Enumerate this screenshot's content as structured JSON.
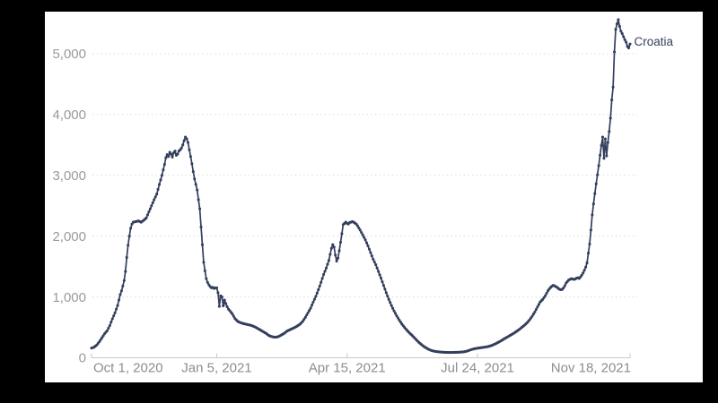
{
  "frame": {
    "background_color": "#000000",
    "canvas_color": "#ffffff"
  },
  "chart_data": {
    "type": "line",
    "description_visible_text_only": true,
    "series": [
      {
        "name": "Croatia",
        "end_label": "Croatia",
        "color": "#343f5d",
        "marker": "dot",
        "points_day_value": [
          [
            0,
            160
          ],
          [
            2,
            175
          ],
          [
            4,
            210
          ],
          [
            6,
            265
          ],
          [
            8,
            330
          ],
          [
            10,
            395
          ],
          [
            12,
            445
          ],
          [
            14,
            530
          ],
          [
            16,
            640
          ],
          [
            18,
            740
          ],
          [
            20,
            860
          ],
          [
            21,
            950
          ],
          [
            22,
            1040
          ],
          [
            23,
            1100
          ],
          [
            24,
            1180
          ],
          [
            25,
            1270
          ],
          [
            26,
            1420
          ],
          [
            27,
            1650
          ],
          [
            28,
            1850
          ],
          [
            29,
            2000
          ],
          [
            30,
            2130
          ],
          [
            31,
            2200
          ],
          [
            32,
            2230
          ],
          [
            34,
            2240
          ],
          [
            36,
            2250
          ],
          [
            38,
            2230
          ],
          [
            40,
            2260
          ],
          [
            42,
            2300
          ],
          [
            44,
            2400
          ],
          [
            45,
            2450
          ],
          [
            46,
            2500
          ],
          [
            48,
            2600
          ],
          [
            50,
            2690
          ],
          [
            52,
            2850
          ],
          [
            54,
            3000
          ],
          [
            56,
            3180
          ],
          [
            57,
            3290
          ],
          [
            58,
            3340
          ],
          [
            59,
            3310
          ],
          [
            60,
            3380
          ],
          [
            61,
            3350
          ],
          [
            62,
            3300
          ],
          [
            63,
            3370
          ],
          [
            64,
            3400
          ],
          [
            65,
            3330
          ],
          [
            66,
            3350
          ],
          [
            67,
            3400
          ],
          [
            68,
            3420
          ],
          [
            69,
            3450
          ],
          [
            70,
            3500
          ],
          [
            71,
            3570
          ],
          [
            72,
            3630
          ],
          [
            73,
            3600
          ],
          [
            74,
            3540
          ],
          [
            75,
            3420
          ],
          [
            76,
            3310
          ],
          [
            77,
            3190
          ],
          [
            78,
            3060
          ],
          [
            79,
            2940
          ],
          [
            80,
            2850
          ],
          [
            81,
            2760
          ],
          [
            82,
            2600
          ],
          [
            83,
            2450
          ],
          [
            84,
            2150
          ],
          [
            85,
            1860
          ],
          [
            86,
            1570
          ],
          [
            87,
            1430
          ],
          [
            88,
            1300
          ],
          [
            89,
            1240
          ],
          [
            90,
            1200
          ],
          [
            91,
            1170
          ],
          [
            92,
            1150
          ],
          [
            93,
            1160
          ],
          [
            94,
            1140
          ],
          [
            95,
            1150
          ],
          [
            96,
            1150
          ],
          [
            97,
            1070
          ],
          [
            98,
            845
          ],
          [
            99,
            1020
          ],
          [
            100,
            1000
          ],
          [
            101,
            855
          ],
          [
            102,
            950
          ],
          [
            103,
            890
          ],
          [
            104,
            840
          ],
          [
            105,
            800
          ],
          [
            106,
            775
          ],
          [
            108,
            720
          ],
          [
            110,
            645
          ],
          [
            112,
            600
          ],
          [
            114,
            580
          ],
          [
            116,
            565
          ],
          [
            118,
            555
          ],
          [
            120,
            545
          ],
          [
            122,
            535
          ],
          [
            124,
            520
          ],
          [
            126,
            500
          ],
          [
            128,
            475
          ],
          [
            130,
            450
          ],
          [
            132,
            425
          ],
          [
            134,
            400
          ],
          [
            136,
            365
          ],
          [
            138,
            350
          ],
          [
            140,
            340
          ],
          [
            142,
            340
          ],
          [
            144,
            355
          ],
          [
            146,
            380
          ],
          [
            148,
            405
          ],
          [
            150,
            440
          ],
          [
            152,
            460
          ],
          [
            154,
            480
          ],
          [
            156,
            500
          ],
          [
            158,
            525
          ],
          [
            160,
            555
          ],
          [
            162,
            600
          ],
          [
            164,
            665
          ],
          [
            166,
            740
          ],
          [
            168,
            815
          ],
          [
            170,
            915
          ],
          [
            172,
            1010
          ],
          [
            174,
            1120
          ],
          [
            176,
            1240
          ],
          [
            178,
            1370
          ],
          [
            180,
            1475
          ],
          [
            182,
            1600
          ],
          [
            183,
            1700
          ],
          [
            184,
            1800
          ],
          [
            185,
            1860
          ],
          [
            186,
            1820
          ],
          [
            187,
            1690
          ],
          [
            188,
            1590
          ],
          [
            189,
            1640
          ],
          [
            190,
            1760
          ],
          [
            191,
            1900
          ],
          [
            192,
            2040
          ],
          [
            193,
            2190
          ],
          [
            194,
            2210
          ],
          [
            195,
            2230
          ],
          [
            196,
            2210
          ],
          [
            197,
            2200
          ],
          [
            198,
            2225
          ],
          [
            199,
            2230
          ],
          [
            200,
            2240
          ],
          [
            201,
            2230
          ],
          [
            202,
            2215
          ],
          [
            203,
            2200
          ],
          [
            204,
            2170
          ],
          [
            206,
            2100
          ],
          [
            208,
            2020
          ],
          [
            210,
            1940
          ],
          [
            212,
            1840
          ],
          [
            214,
            1730
          ],
          [
            216,
            1620
          ],
          [
            218,
            1530
          ],
          [
            220,
            1420
          ],
          [
            222,
            1310
          ],
          [
            224,
            1190
          ],
          [
            226,
            1070
          ],
          [
            228,
            960
          ],
          [
            230,
            860
          ],
          [
            232,
            770
          ],
          [
            234,
            690
          ],
          [
            236,
            620
          ],
          [
            238,
            555
          ],
          [
            240,
            500
          ],
          [
            242,
            450
          ],
          [
            244,
            405
          ],
          [
            246,
            365
          ],
          [
            248,
            320
          ],
          [
            250,
            275
          ],
          [
            252,
            235
          ],
          [
            254,
            200
          ],
          [
            256,
            170
          ],
          [
            258,
            145
          ],
          [
            260,
            125
          ],
          [
            262,
            112
          ],
          [
            264,
            104
          ],
          [
            266,
            98
          ],
          [
            268,
            94
          ],
          [
            270,
            91
          ],
          [
            272,
            89
          ],
          [
            274,
            88
          ],
          [
            276,
            88
          ],
          [
            278,
            89
          ],
          [
            280,
            90
          ],
          [
            282,
            92
          ],
          [
            284,
            95
          ],
          [
            286,
            100
          ],
          [
            288,
            110
          ],
          [
            290,
            125
          ],
          [
            292,
            140
          ],
          [
            294,
            150
          ],
          [
            296,
            158
          ],
          [
            298,
            164
          ],
          [
            300,
            170
          ],
          [
            302,
            176
          ],
          [
            304,
            184
          ],
          [
            306,
            196
          ],
          [
            308,
            212
          ],
          [
            310,
            232
          ],
          [
            312,
            255
          ],
          [
            314,
            278
          ],
          [
            316,
            305
          ],
          [
            318,
            330
          ],
          [
            320,
            355
          ],
          [
            322,
            380
          ],
          [
            324,
            405
          ],
          [
            326,
            435
          ],
          [
            328,
            465
          ],
          [
            330,
            500
          ],
          [
            332,
            535
          ],
          [
            334,
            575
          ],
          [
            336,
            625
          ],
          [
            338,
            685
          ],
          [
            340,
            755
          ],
          [
            342,
            835
          ],
          [
            344,
            915
          ],
          [
            346,
            960
          ],
          [
            347,
            990
          ],
          [
            348,
            1020
          ],
          [
            349,
            1060
          ],
          [
            350,
            1100
          ],
          [
            351,
            1130
          ],
          [
            352,
            1155
          ],
          [
            353,
            1175
          ],
          [
            354,
            1190
          ],
          [
            355,
            1185
          ],
          [
            356,
            1170
          ],
          [
            357,
            1160
          ],
          [
            358,
            1140
          ],
          [
            359,
            1125
          ],
          [
            360,
            1120
          ],
          [
            361,
            1125
          ],
          [
            362,
            1150
          ],
          [
            363,
            1185
          ],
          [
            364,
            1230
          ],
          [
            365,
            1255
          ],
          [
            366,
            1280
          ],
          [
            367,
            1290
          ],
          [
            368,
            1300
          ],
          [
            369,
            1295
          ],
          [
            370,
            1290
          ],
          [
            371,
            1295
          ],
          [
            372,
            1310
          ],
          [
            373,
            1315
          ],
          [
            374,
            1305
          ],
          [
            375,
            1330
          ],
          [
            376,
            1360
          ],
          [
            377,
            1395
          ],
          [
            378,
            1440
          ],
          [
            379,
            1490
          ],
          [
            380,
            1560
          ],
          [
            381,
            1720
          ],
          [
            382,
            1870
          ],
          [
            383,
            2100
          ],
          [
            384,
            2350
          ],
          [
            385,
            2530
          ],
          [
            386,
            2700
          ],
          [
            387,
            2860
          ],
          [
            388,
            3010
          ],
          [
            389,
            3160
          ],
          [
            390,
            3330
          ],
          [
            391,
            3490
          ],
          [
            392,
            3630
          ],
          [
            393,
            3280
          ],
          [
            394,
            3600
          ],
          [
            395,
            3320
          ],
          [
            396,
            3540
          ],
          [
            397,
            3720
          ],
          [
            398,
            3940
          ],
          [
            399,
            4240
          ],
          [
            400,
            4450
          ],
          [
            401,
            5030
          ],
          [
            402,
            5400
          ],
          [
            403,
            5490
          ],
          [
            404,
            5560
          ],
          [
            405,
            5450
          ],
          [
            406,
            5370
          ],
          [
            407,
            5330
          ],
          [
            408,
            5280
          ],
          [
            409,
            5230
          ],
          [
            410,
            5190
          ],
          [
            411,
            5120
          ],
          [
            412,
            5095
          ],
          [
            413,
            5160
          ]
        ]
      }
    ],
    "x_axis": {
      "tick_labels": [
        "Oct 1, 2020",
        "Jan 5, 2021",
        "Apr 15, 2021",
        "Jul 24, 2021",
        "Nov 18, 2021"
      ],
      "tick_day_offsets": [
        0,
        96,
        196,
        296,
        413
      ],
      "day_zero_label": "Oct 1, 2020",
      "label_color": "#8d8d8d"
    },
    "y_axis": {
      "tick_values": [
        0,
        1000,
        2000,
        3000,
        4000,
        5000
      ],
      "tick_labels": [
        "0",
        "1,000",
        "2,000",
        "3,000",
        "4,000",
        "5,000"
      ],
      "range": [
        0,
        5600
      ],
      "label_color": "#9a9a9a"
    },
    "grid": {
      "style": "dotted-horizontal",
      "color": "#d9d9d9",
      "axis_line_color": "#c8c8c8"
    },
    "legend": {
      "position": "line-end",
      "entries": [
        "Croatia"
      ]
    }
  }
}
